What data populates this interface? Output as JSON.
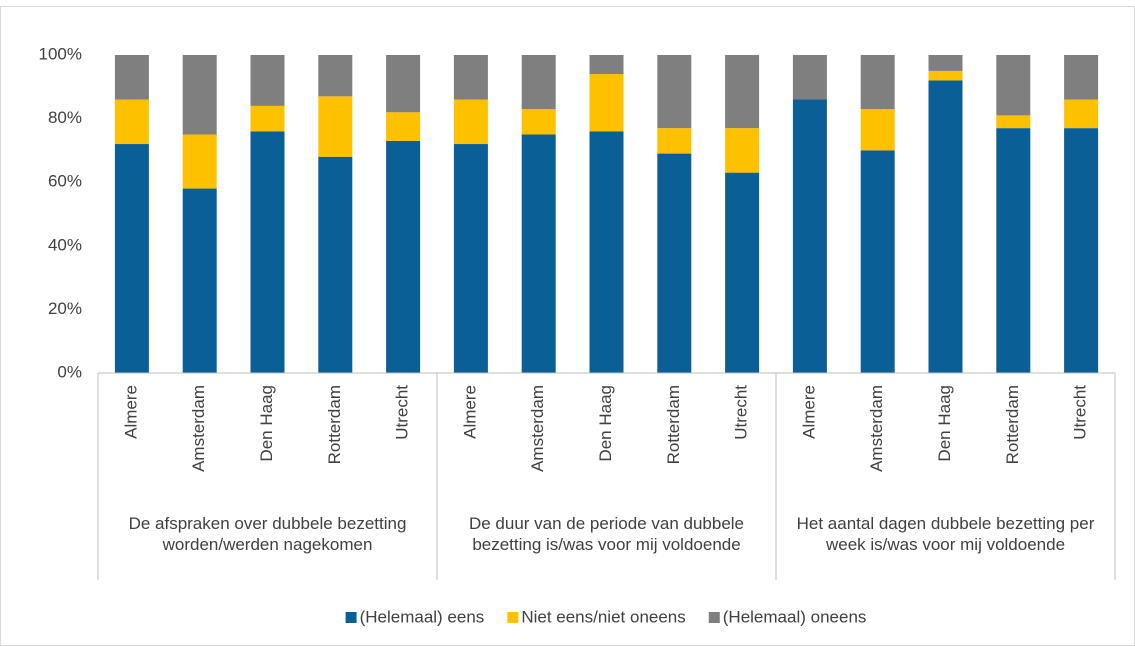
{
  "chart_data": {
    "type": "stacked_bar",
    "groups": [
      {
        "label": "De afspraken over dubbele bezetting worden/werden nagekomen",
        "categories": [
          "Almere",
          "Amsterdam",
          "Den Haag",
          "Rotterdam",
          "Utrecht"
        ]
      },
      {
        "label": "De duur van de periode van dubbele bezetting is/was voor mij voldoende",
        "categories": [
          "Almere",
          "Amsterdam",
          "Den Haag",
          "Rotterdam",
          "Utrecht"
        ]
      },
      {
        "label": "Het aantal dagen dubbele bezetting per week is/was voor mij voldoende",
        "categories": [
          "Almere",
          "Amsterdam",
          "Den Haag",
          "Rotterdam",
          "Utrecht"
        ]
      }
    ],
    "series": [
      {
        "name": "(Helemaal) eens",
        "color": "#0a5f96",
        "values": [
          72,
          58,
          76,
          68,
          73,
          72,
          75,
          76,
          69,
          63,
          86,
          70,
          92,
          77,
          77
        ]
      },
      {
        "name": "Niet eens/niet oneens",
        "color": "#fdc100",
        "values": [
          14,
          17,
          8,
          19,
          9,
          14,
          8,
          18,
          8,
          14,
          0,
          13,
          3,
          4,
          9
        ]
      },
      {
        "name": "(Helemaal) oneens",
        "color": "#7f7f7f",
        "values": [
          14,
          25,
          16,
          13,
          18,
          14,
          17,
          6,
          23,
          23,
          14,
          17,
          5,
          19,
          14
        ]
      }
    ],
    "ylim": [
      0,
      100
    ],
    "yticks": [
      {
        "value": 0,
        "label": "0%"
      },
      {
        "value": 20,
        "label": "20%"
      },
      {
        "value": 40,
        "label": "40%"
      },
      {
        "value": 60,
        "label": "60%"
      },
      {
        "value": 80,
        "label": "80%"
      },
      {
        "value": 100,
        "label": "100%"
      }
    ],
    "grid": false,
    "legend": "bottom"
  }
}
